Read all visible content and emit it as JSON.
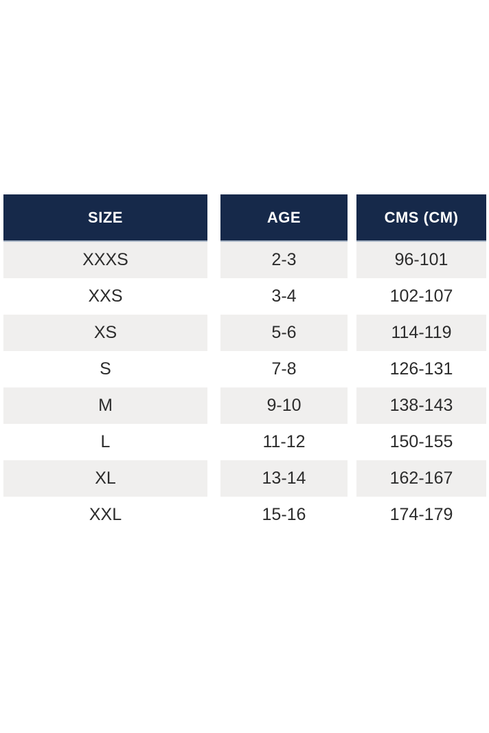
{
  "chart_data": {
    "type": "table",
    "columns": [
      "SIZE",
      "AGE",
      "CMS (CM)"
    ],
    "rows": [
      [
        "XXXS",
        "2-3",
        "96-101"
      ],
      [
        "XXS",
        "3-4",
        "102-107"
      ],
      [
        "XS",
        "5-6",
        "114-119"
      ],
      [
        "S",
        "7-8",
        "126-131"
      ],
      [
        "M",
        "9-10",
        "138-143"
      ],
      [
        "L",
        "11-12",
        "150-155"
      ],
      [
        "XL",
        "13-14",
        "162-167"
      ],
      [
        "XXL",
        "15-16",
        "174-179"
      ]
    ],
    "layout": "three separate column blocks with white gaps, alternating row shading starting gray",
    "colors": {
      "header_bg": "#16294a",
      "header_text": "#ffffff",
      "header_bottom_border": "#a9b6c6",
      "row_alt_bg": "#f0efee",
      "row_bg": "#ffffff",
      "body_text": "#2c2c2c"
    }
  },
  "table": {
    "columns": [
      {
        "header": "SIZE"
      },
      {
        "header": "AGE"
      },
      {
        "header": "CMS (CM)"
      }
    ],
    "rows": [
      {
        "size": "XXXS",
        "age": "2-3",
        "cms": "96-101"
      },
      {
        "size": "XXS",
        "age": "3-4",
        "cms": "102-107"
      },
      {
        "size": "XS",
        "age": "5-6",
        "cms": "114-119"
      },
      {
        "size": "S",
        "age": "7-8",
        "cms": "126-131"
      },
      {
        "size": "M",
        "age": "9-10",
        "cms": "138-143"
      },
      {
        "size": "L",
        "age": "11-12",
        "cms": "150-155"
      },
      {
        "size": "XL",
        "age": "13-14",
        "cms": "162-167"
      },
      {
        "size": "XXL",
        "age": "15-16",
        "cms": "174-179"
      }
    ]
  }
}
